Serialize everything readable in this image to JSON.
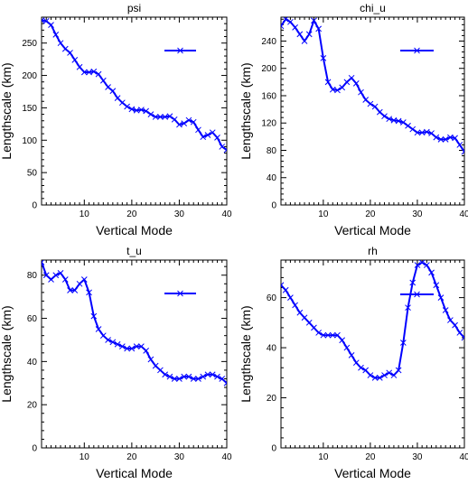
{
  "chart_data": [
    {
      "type": "line",
      "title": "psi",
      "xlabel": "Vertical Mode",
      "ylabel": "Lengthscale (km)",
      "xlim": [
        1,
        40
      ],
      "ylim": [
        0,
        290
      ],
      "xticks": [
        10,
        20,
        30,
        40
      ],
      "yticks": [
        0,
        50,
        100,
        150,
        200,
        250
      ],
      "color": "#0000ff",
      "marker": "x",
      "x": [
        1,
        2,
        3,
        4,
        5,
        6,
        7,
        8,
        9,
        10,
        11,
        12,
        13,
        14,
        15,
        16,
        17,
        18,
        19,
        20,
        21,
        22,
        23,
        24,
        25,
        26,
        27,
        28,
        29,
        30,
        31,
        32,
        33,
        34,
        35,
        36,
        37,
        38,
        39,
        40
      ],
      "values": [
        285,
        284,
        278,
        263,
        250,
        241,
        235,
        224,
        213,
        205,
        205,
        206,
        202,
        192,
        182,
        176,
        165,
        158,
        152,
        148,
        146,
        147,
        145,
        140,
        136,
        136,
        136,
        137,
        132,
        124,
        126,
        131,
        128,
        116,
        105,
        108,
        112,
        104,
        90,
        85
      ]
    },
    {
      "type": "line",
      "title": "chi_u",
      "xlabel": "Vertical Mode",
      "ylabel": "Lengthscale (km)",
      "xlim": [
        1,
        40
      ],
      "ylim": [
        0,
        275
      ],
      "xticks": [
        10,
        20,
        30,
        40
      ],
      "yticks": [
        0,
        40,
        80,
        120,
        160,
        200,
        240
      ],
      "color": "#0000ff",
      "marker": "x",
      "x": [
        1,
        2,
        3,
        4,
        5,
        6,
        7,
        8,
        9,
        10,
        11,
        12,
        13,
        14,
        15,
        16,
        17,
        18,
        19,
        20,
        21,
        22,
        23,
        24,
        25,
        26,
        27,
        28,
        29,
        30,
        31,
        32,
        33,
        34,
        35,
        36,
        37,
        38,
        39,
        40
      ],
      "values": [
        262,
        272,
        268,
        260,
        250,
        240,
        250,
        270,
        258,
        215,
        180,
        169,
        168,
        172,
        180,
        186,
        178,
        165,
        154,
        148,
        144,
        136,
        130,
        126,
        124,
        123,
        121,
        116,
        111,
        106,
        106,
        107,
        105,
        99,
        96,
        96,
        99,
        98,
        88,
        78
      ]
    },
    {
      "type": "line",
      "title": "t_u",
      "xlabel": "Vertical Mode",
      "ylabel": "Lengthscale (km)",
      "xlim": [
        1,
        40
      ],
      "ylim": [
        0,
        87
      ],
      "xticks": [
        10,
        20,
        30,
        40
      ],
      "yticks": [
        0,
        20,
        40,
        60,
        80
      ],
      "color": "#0000ff",
      "marker": "x",
      "x": [
        1,
        2,
        3,
        4,
        5,
        6,
        7,
        8,
        9,
        10,
        11,
        12,
        13,
        14,
        15,
        16,
        17,
        18,
        19,
        20,
        21,
        22,
        23,
        24,
        25,
        26,
        27,
        28,
        29,
        30,
        31,
        32,
        33,
        34,
        35,
        36,
        37,
        38,
        39,
        40
      ],
      "values": [
        86,
        80,
        78,
        80,
        81,
        78,
        73,
        73,
        76,
        78,
        72,
        61,
        55,
        52,
        50,
        49,
        48,
        47,
        46,
        46,
        47,
        47,
        45,
        41,
        38,
        36,
        34,
        33,
        32,
        32,
        33,
        33,
        32,
        32,
        33,
        34,
        34,
        33,
        32,
        30
      ]
    },
    {
      "type": "line",
      "title": "rh",
      "xlabel": "Vertical Mode",
      "ylabel": "Lengthscale (km)",
      "xlim": [
        1,
        40
      ],
      "ylim": [
        0,
        75
      ],
      "xticks": [
        10,
        20,
        30,
        40
      ],
      "yticks": [
        0,
        20,
        40,
        60
      ],
      "color": "#0000ff",
      "marker": "x",
      "x": [
        1,
        2,
        3,
        4,
        5,
        6,
        7,
        8,
        9,
        10,
        11,
        12,
        13,
        14,
        15,
        16,
        17,
        18,
        19,
        20,
        21,
        22,
        23,
        24,
        25,
        26,
        27,
        28,
        29,
        30,
        31,
        32,
        33,
        34,
        35,
        36,
        37,
        38,
        39,
        40
      ],
      "values": [
        65,
        63,
        60,
        57,
        54,
        52,
        50,
        48,
        46,
        45,
        45,
        45,
        45,
        43,
        40,
        37,
        34,
        32,
        31,
        29,
        28,
        28,
        29,
        30,
        29,
        31,
        42,
        56,
        66,
        73,
        74,
        73,
        70,
        65,
        60,
        55,
        51,
        49,
        46,
        44
      ]
    }
  ]
}
